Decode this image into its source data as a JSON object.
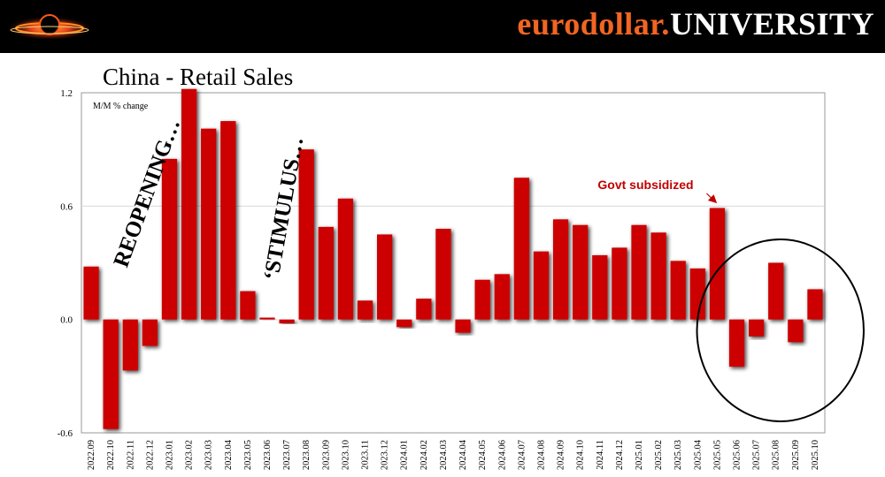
{
  "brand": {
    "part1": "eurodollar.",
    "part2": "UNIVERSITY"
  },
  "chart_data": {
    "type": "bar",
    "title": "China - Retail Sales",
    "ylabel": "M/M % change",
    "xlabel": "",
    "ylim": [
      -0.6,
      1.2
    ],
    "yticks": [
      1.2,
      0.6,
      0.0,
      -0.6
    ],
    "ytick_labels": [
      "1.2",
      "0.6",
      "0.0",
      "-0.6"
    ],
    "grid": "horizontal",
    "bar_color": "#cc0000",
    "categories": [
      "2022.09",
      "2022.10",
      "2022.11",
      "2022.12",
      "2023.01",
      "2023.02",
      "2023.03",
      "2023.04",
      "2023.05",
      "2023.06",
      "2023.07",
      "2023.08",
      "2023.09",
      "2023.10",
      "2023.11",
      "2023.12",
      "2024.01",
      "2024.02",
      "2024.03",
      "2024.04",
      "2024.05",
      "2024.06",
      "2024.07",
      "2024.08",
      "2024.09",
      "2024.10",
      "2024.11",
      "2024.12",
      "2025.01",
      "2025.02",
      "2025.03",
      "2025.04",
      "2025.05",
      "2025.06",
      "2025.07",
      "2025.08",
      "2025.09",
      "2025.10"
    ],
    "values": [
      0.28,
      -0.58,
      -0.27,
      -0.14,
      0.85,
      1.22,
      1.01,
      1.05,
      0.15,
      0.01,
      -0.02,
      0.9,
      0.49,
      0.64,
      0.1,
      0.45,
      -0.04,
      0.11,
      0.48,
      -0.07,
      0.21,
      0.24,
      0.75,
      0.36,
      0.53,
      0.5,
      0.34,
      0.38,
      0.5,
      0.46,
      0.31,
      0.27,
      0.59,
      -0.25,
      -0.09,
      0.3,
      -0.12,
      0.16
    ],
    "annotations": [
      {
        "id": "reopening",
        "text": "REOPENING…",
        "at_category": "2022.11"
      },
      {
        "id": "stimulus",
        "text": "‘STIMULUS…",
        "at_category": "2023.06"
      },
      {
        "id": "govt",
        "text": "Govt subsidized",
        "points_to": "2025.05",
        "color": "#c00000"
      },
      {
        "id": "circle",
        "text": "",
        "encircles": [
          "2025.06",
          "2025.07",
          "2025.08",
          "2025.09",
          "2025.10"
        ]
      }
    ]
  }
}
